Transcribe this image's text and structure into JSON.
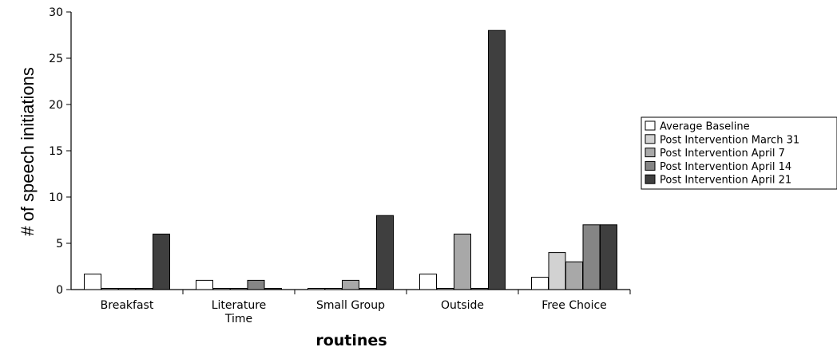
{
  "chart_data": {
    "type": "bar",
    "title": "",
    "xlabel": "routines",
    "ylabel": "# of speech initiations",
    "ylim": [
      0,
      30
    ],
    "yticks": [
      0,
      5,
      10,
      15,
      20,
      25,
      30
    ],
    "categories": [
      "Breakfast",
      "Literature Time",
      "Small Group",
      "Outside",
      "Free Choice"
    ],
    "series": [
      {
        "name": "Average Baseline",
        "color": "#ffffff",
        "values": [
          1.67,
          1,
          0,
          1.67,
          1.33
        ]
      },
      {
        "name": "Post Intervention March 31",
        "color": "#d2d2d2",
        "values": [
          0,
          0,
          0,
          0,
          4
        ]
      },
      {
        "name": "Post Intervention April 7",
        "color": "#a8a8a8",
        "values": [
          0,
          0,
          1,
          6,
          3
        ]
      },
      {
        "name": "Post Intervention April 14",
        "color": "#858585",
        "values": [
          0,
          1,
          0,
          0,
          7
        ]
      },
      {
        "name": "Post Intervention April 21",
        "color": "#3f3f3f",
        "values": [
          6,
          0,
          8,
          28,
          7
        ]
      }
    ],
    "grid": false,
    "legend": "right"
  }
}
